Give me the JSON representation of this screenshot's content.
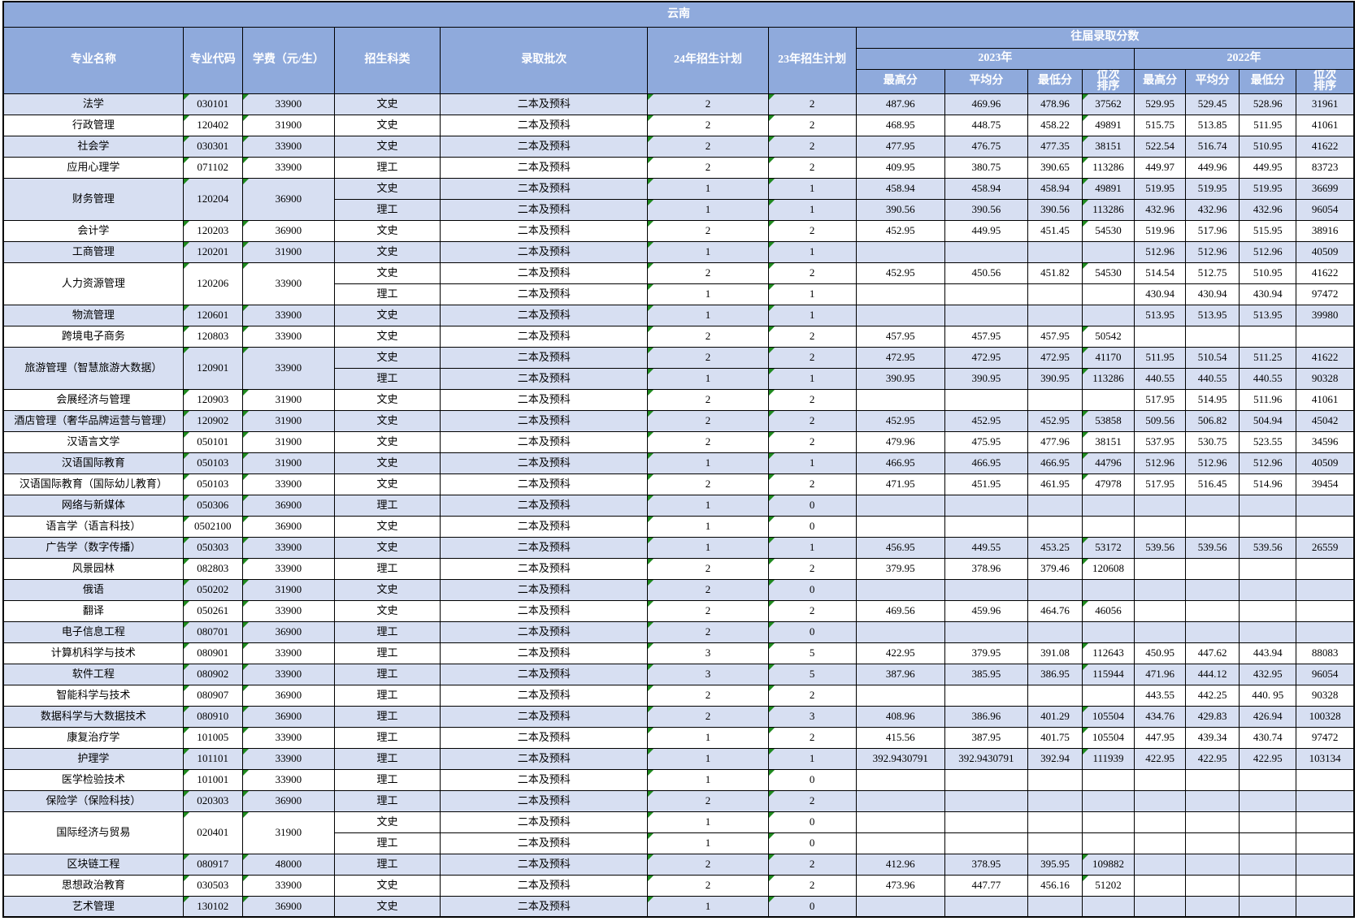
{
  "title": "云南",
  "columns": [
    "专业名称",
    "专业代码",
    "学费（元/生）",
    "招生科类",
    "录取批次",
    "24年招生计划",
    "23年招生计划",
    "往届录取分数"
  ],
  "years": [
    "2023年",
    "2022年"
  ],
  "score_cols": [
    "最高分",
    "平均分",
    "最低分",
    "位次\n排序"
  ],
  "colors": {
    "header_bg": "#8FAADC",
    "band_bg": "#D7DFF2",
    "border": "#000000",
    "marker_green": "#1F8A1F",
    "header_text": "#FFFFFF"
  },
  "groups": [
    {
      "name": "法学",
      "code": "030101",
      "tuition": "33900",
      "rows": [
        {
          "sci": "文史",
          "batch": "二本及预科",
          "p24": "2",
          "p23": "2",
          "s": [
            "487.96",
            "469.96",
            "478.96",
            "37562",
            "529.95",
            "529.45",
            "528.96",
            "31961"
          ]
        }
      ]
    },
    {
      "name": "行政管理",
      "code": "120402",
      "tuition": "31900",
      "rows": [
        {
          "sci": "文史",
          "batch": "二本及预科",
          "p24": "2",
          "p23": "2",
          "s": [
            "468.95",
            "448.75",
            "458.22",
            "49891",
            "515.75",
            "513.85",
            "511.95",
            "41061"
          ]
        }
      ]
    },
    {
      "name": "社会学",
      "code": "030301",
      "tuition": "33900",
      "rows": [
        {
          "sci": "文史",
          "batch": "二本及预科",
          "p24": "2",
          "p23": "2",
          "s": [
            "477.95",
            "476.75",
            "477.35",
            "38151",
            "522.54",
            "516.74",
            "510.95",
            "41622"
          ]
        }
      ]
    },
    {
      "name": "应用心理学",
      "code": "071102",
      "tuition": "33900",
      "rows": [
        {
          "sci": "理工",
          "batch": "二本及预科",
          "p24": "2",
          "p23": "2",
          "s": [
            "409.95",
            "380.75",
            "390.65",
            "113286",
            "449.97",
            "449.96",
            "449.95",
            "83723"
          ]
        }
      ]
    },
    {
      "name": "财务管理",
      "code": "120204",
      "tuition": "36900",
      "rows": [
        {
          "sci": "文史",
          "batch": "二本及预科",
          "p24": "1",
          "p23": "1",
          "s": [
            "458.94",
            "458.94",
            "458.94",
            "49891",
            "519.95",
            "519.95",
            "519.95",
            "36699"
          ]
        },
        {
          "sci": "理工",
          "batch": "二本及预科",
          "p24": "1",
          "p23": "1",
          "s": [
            "390.56",
            "390.56",
            "390.56",
            "113286",
            "432.96",
            "432.96",
            "432.96",
            "96054"
          ]
        }
      ]
    },
    {
      "name": "会计学",
      "code": "120203",
      "tuition": "36900",
      "rows": [
        {
          "sci": "文史",
          "batch": "二本及预科",
          "p24": "2",
          "p23": "2",
          "s": [
            "452.95",
            "449.95",
            "451.45",
            "54530",
            "519.96",
            "517.96",
            "515.95",
            "38916"
          ]
        }
      ]
    },
    {
      "name": "工商管理",
      "code": "120201",
      "tuition": "31900",
      "rows": [
        {
          "sci": "文史",
          "batch": "二本及预科",
          "p24": "1",
          "p23": "1",
          "s": [
            "",
            "",
            "",
            "",
            "512.96",
            "512.96",
            "512.96",
            "40509"
          ]
        }
      ]
    },
    {
      "name": "人力资源管理",
      "code": "120206",
      "tuition": "33900",
      "rows": [
        {
          "sci": "文史",
          "batch": "二本及预科",
          "p24": "2",
          "p23": "2",
          "s": [
            "452.95",
            "450.56",
            "451.82",
            "54530",
            "514.54",
            "512.75",
            "510.95",
            "41622"
          ]
        },
        {
          "sci": "理工",
          "batch": "二本及预科",
          "p24": "1",
          "p23": "1",
          "s": [
            "",
            "",
            "",
            "",
            "430.94",
            "430.94",
            "430.94",
            "97472"
          ]
        }
      ]
    },
    {
      "name": "物流管理",
      "code": "120601",
      "tuition": "33900",
      "rows": [
        {
          "sci": "文史",
          "batch": "二本及预科",
          "p24": "1",
          "p23": "1",
          "s": [
            "",
            "",
            "",
            "",
            "513.95",
            "513.95",
            "513.95",
            "39980"
          ]
        }
      ]
    },
    {
      "name": "跨境电子商务",
      "code": "120803",
      "tuition": "33900",
      "rows": [
        {
          "sci": "文史",
          "batch": "二本及预科",
          "p24": "2",
          "p23": "2",
          "s": [
            "457.95",
            "457.95",
            "457.95",
            "50542",
            "",
            "",
            "",
            ""
          ]
        }
      ]
    },
    {
      "name": "旅游管理（智慧旅游大数据）",
      "code": "120901",
      "tuition": "33900",
      "rows": [
        {
          "sci": "文史",
          "batch": "二本及预科",
          "p24": "2",
          "p23": "2",
          "s": [
            "472.95",
            "472.95",
            "472.95",
            "41170",
            "511.95",
            "510.54",
            "511.25",
            "41622"
          ]
        },
        {
          "sci": "理工",
          "batch": "二本及预科",
          "p24": "1",
          "p23": "1",
          "s": [
            "390.95",
            "390.95",
            "390.95",
            "113286",
            "440.55",
            "440.55",
            "440.55",
            "90328"
          ]
        }
      ]
    },
    {
      "name": "会展经济与管理",
      "code": "120903",
      "tuition": "31900",
      "rows": [
        {
          "sci": "文史",
          "batch": "二本及预科",
          "p24": "2",
          "p23": "2",
          "s": [
            "",
            "",
            "",
            "",
            "517.95",
            "514.95",
            "511.96",
            "41061"
          ]
        }
      ]
    },
    {
      "name": "酒店管理（奢华品牌运营与管理）",
      "code": "120902",
      "tuition": "31900",
      "rows": [
        {
          "sci": "文史",
          "batch": "二本及预科",
          "p24": "2",
          "p23": "2",
          "s": [
            "452.95",
            "452.95",
            "452.95",
            "53858",
            "509.56",
            "506.82",
            "504.94",
            "45042"
          ]
        }
      ]
    },
    {
      "name": "汉语言文学",
      "code": "050101",
      "tuition": "31900",
      "rows": [
        {
          "sci": "文史",
          "batch": "二本及预科",
          "p24": "2",
          "p23": "2",
          "s": [
            "479.96",
            "475.95",
            "477.96",
            "38151",
            "537.95",
            "530.75",
            "523.55",
            "34596"
          ]
        }
      ]
    },
    {
      "name": "汉语国际教育",
      "code": "050103",
      "tuition": "31900",
      "rows": [
        {
          "sci": "文史",
          "batch": "二本及预科",
          "p24": "1",
          "p23": "1",
          "s": [
            "466.95",
            "466.95",
            "466.95",
            "44796",
            "512.96",
            "512.96",
            "512.96",
            "40509"
          ]
        }
      ]
    },
    {
      "name": "汉语国际教育（国际幼儿教育）",
      "code": "050103",
      "tuition": "33900",
      "rows": [
        {
          "sci": "文史",
          "batch": "二本及预科",
          "p24": "2",
          "p23": "2",
          "s": [
            "471.95",
            "451.95",
            "461.95",
            "47978",
            "517.95",
            "516.45",
            "514.96",
            "39454"
          ]
        }
      ]
    },
    {
      "name": "网络与新媒体",
      "code": "050306",
      "tuition": "36900",
      "rows": [
        {
          "sci": "理工",
          "batch": "二本及预科",
          "p24": "1",
          "p23": "0",
          "s": [
            "",
            "",
            "",
            "",
            "",
            "",
            "",
            ""
          ]
        }
      ]
    },
    {
      "name": "语言学（语言科技）",
      "code": "0502100",
      "tuition": "36900",
      "rows": [
        {
          "sci": "文史",
          "batch": "二本及预科",
          "p24": "1",
          "p23": "0",
          "s": [
            "",
            "",
            "",
            "",
            "",
            "",
            "",
            ""
          ]
        }
      ]
    },
    {
      "name": "广告学（数字传播）",
      "code": "050303",
      "tuition": "33900",
      "rows": [
        {
          "sci": "文史",
          "batch": "二本及预科",
          "p24": "1",
          "p23": "1",
          "s": [
            "456.95",
            "449.55",
            "453.25",
            "53172",
            "539.56",
            "539.56",
            "539.56",
            "26559"
          ]
        }
      ]
    },
    {
      "name": "风景园林",
      "code": "082803",
      "tuition": "33900",
      "rows": [
        {
          "sci": "理工",
          "batch": "二本及预科",
          "p24": "2",
          "p23": "2",
          "s": [
            "379.95",
            "378.96",
            "379.46",
            "120608",
            "",
            "",
            "",
            ""
          ]
        }
      ]
    },
    {
      "name": "俄语",
      "code": "050202",
      "tuition": "31900",
      "rows": [
        {
          "sci": "文史",
          "batch": "二本及预科",
          "p24": "2",
          "p23": "0",
          "s": [
            "",
            "",
            "",
            "",
            "",
            "",
            "",
            ""
          ]
        }
      ]
    },
    {
      "name": "翻译",
      "code": "050261",
      "tuition": "33900",
      "rows": [
        {
          "sci": "文史",
          "batch": "二本及预科",
          "p24": "2",
          "p23": "2",
          "s": [
            "469.56",
            "459.96",
            "464.76",
            "46056",
            "",
            "",
            "",
            ""
          ]
        }
      ]
    },
    {
      "name": "电子信息工程",
      "code": "080701",
      "tuition": "36900",
      "rows": [
        {
          "sci": "理工",
          "batch": "二本及预科",
          "p24": "2",
          "p23": "0",
          "s": [
            "",
            "",
            "",
            "",
            "",
            "",
            "",
            ""
          ]
        }
      ]
    },
    {
      "name": "计算机科学与技术",
      "code": "080901",
      "tuition": "33900",
      "rows": [
        {
          "sci": "理工",
          "batch": "二本及预科",
          "p24": "3",
          "p23": "5",
          "s": [
            "422.95",
            "379.95",
            "391.08",
            "112643",
            "450.95",
            "447.62",
            "443.94",
            "88083"
          ]
        }
      ]
    },
    {
      "name": "软件工程",
      "code": "080902",
      "tuition": "33900",
      "rows": [
        {
          "sci": "理工",
          "batch": "二本及预科",
          "p24": "3",
          "p23": "5",
          "s": [
            "387.96",
            "385.95",
            "386.95",
            "115944",
            "471.96",
            "444.12",
            "432.95",
            "96054"
          ]
        }
      ]
    },
    {
      "name": "智能科学与技术",
      "code": "080907",
      "tuition": "36900",
      "rows": [
        {
          "sci": "理工",
          "batch": "二本及预科",
          "p24": "2",
          "p23": "2",
          "s": [
            "",
            "",
            "",
            "",
            "443.55",
            "442.25",
            "440. 95",
            "90328"
          ]
        }
      ]
    },
    {
      "name": "数据科学与大数据技术",
      "code": "080910",
      "tuition": "36900",
      "rows": [
        {
          "sci": "理工",
          "batch": "二本及预科",
          "p24": "2",
          "p23": "3",
          "s": [
            "408.96",
            "386.96",
            "401.29",
            "105504",
            "434.76",
            "429.83",
            "426.94",
            "100328"
          ]
        }
      ]
    },
    {
      "name": "康复治疗学",
      "code": "101005",
      "tuition": "33900",
      "rows": [
        {
          "sci": "理工",
          "batch": "二本及预科",
          "p24": "1",
          "p23": "2",
          "s": [
            "415.56",
            "387.95",
            "401.75",
            "105504",
            "447.95",
            "439.34",
            "430.74",
            "97472"
          ]
        }
      ]
    },
    {
      "name": "护理学",
      "code": "101101",
      "tuition": "33900",
      "rows": [
        {
          "sci": "理工",
          "batch": "二本及预科",
          "p24": "1",
          "p23": "1",
          "s": [
            "392.9430791",
            "392.9430791",
            "392.94",
            "111939",
            "422.95",
            "422.95",
            "422.95",
            "103134"
          ]
        }
      ]
    },
    {
      "name": "医学检验技术",
      "code": "101001",
      "tuition": "33900",
      "rows": [
        {
          "sci": "理工",
          "batch": "二本及预科",
          "p24": "1",
          "p23": "0",
          "s": [
            "",
            "",
            "",
            "",
            "",
            "",
            "",
            ""
          ]
        }
      ]
    },
    {
      "name": "保险学（保险科技）",
      "code": "020303",
      "tuition": "36900",
      "rows": [
        {
          "sci": "理工",
          "batch": "二本及预科",
          "p24": "2",
          "p23": "2",
          "s": [
            "",
            "",
            "",
            "",
            "",
            "",
            "",
            ""
          ]
        }
      ]
    },
    {
      "name": "国际经济与贸易",
      "code": "020401",
      "tuition": "31900",
      "rows": [
        {
          "sci": "文史",
          "batch": "二本及预科",
          "p24": "1",
          "p23": "0",
          "s": [
            "",
            "",
            "",
            "",
            "",
            "",
            "",
            ""
          ]
        },
        {
          "sci": "理工",
          "batch": "二本及预科",
          "p24": "1",
          "p23": "0",
          "s": [
            "",
            "",
            "",
            "",
            "",
            "",
            "",
            ""
          ]
        }
      ]
    },
    {
      "name": "区块链工程",
      "code": "080917",
      "tuition": "48000",
      "rows": [
        {
          "sci": "理工",
          "batch": "二本及预科",
          "p24": "2",
          "p23": "2",
          "s": [
            "412.96",
            "378.95",
            "395.95",
            "109882",
            "",
            "",
            "",
            ""
          ]
        }
      ]
    },
    {
      "name": "思想政治教育",
      "code": "030503",
      "tuition": "33900",
      "rows": [
        {
          "sci": "文史",
          "batch": "二本及预科",
          "p24": "2",
          "p23": "2",
          "s": [
            "473.96",
            "447.77",
            "456.16",
            "51202",
            "",
            "",
            "",
            ""
          ]
        }
      ]
    },
    {
      "name": "艺术管理",
      "code": "130102",
      "tuition": "36900",
      "rows": [
        {
          "sci": "文史",
          "batch": "二本及预科",
          "p24": "1",
          "p23": "0",
          "s": [
            "",
            "",
            "",
            "",
            "",
            "",
            "",
            ""
          ]
        }
      ]
    }
  ]
}
